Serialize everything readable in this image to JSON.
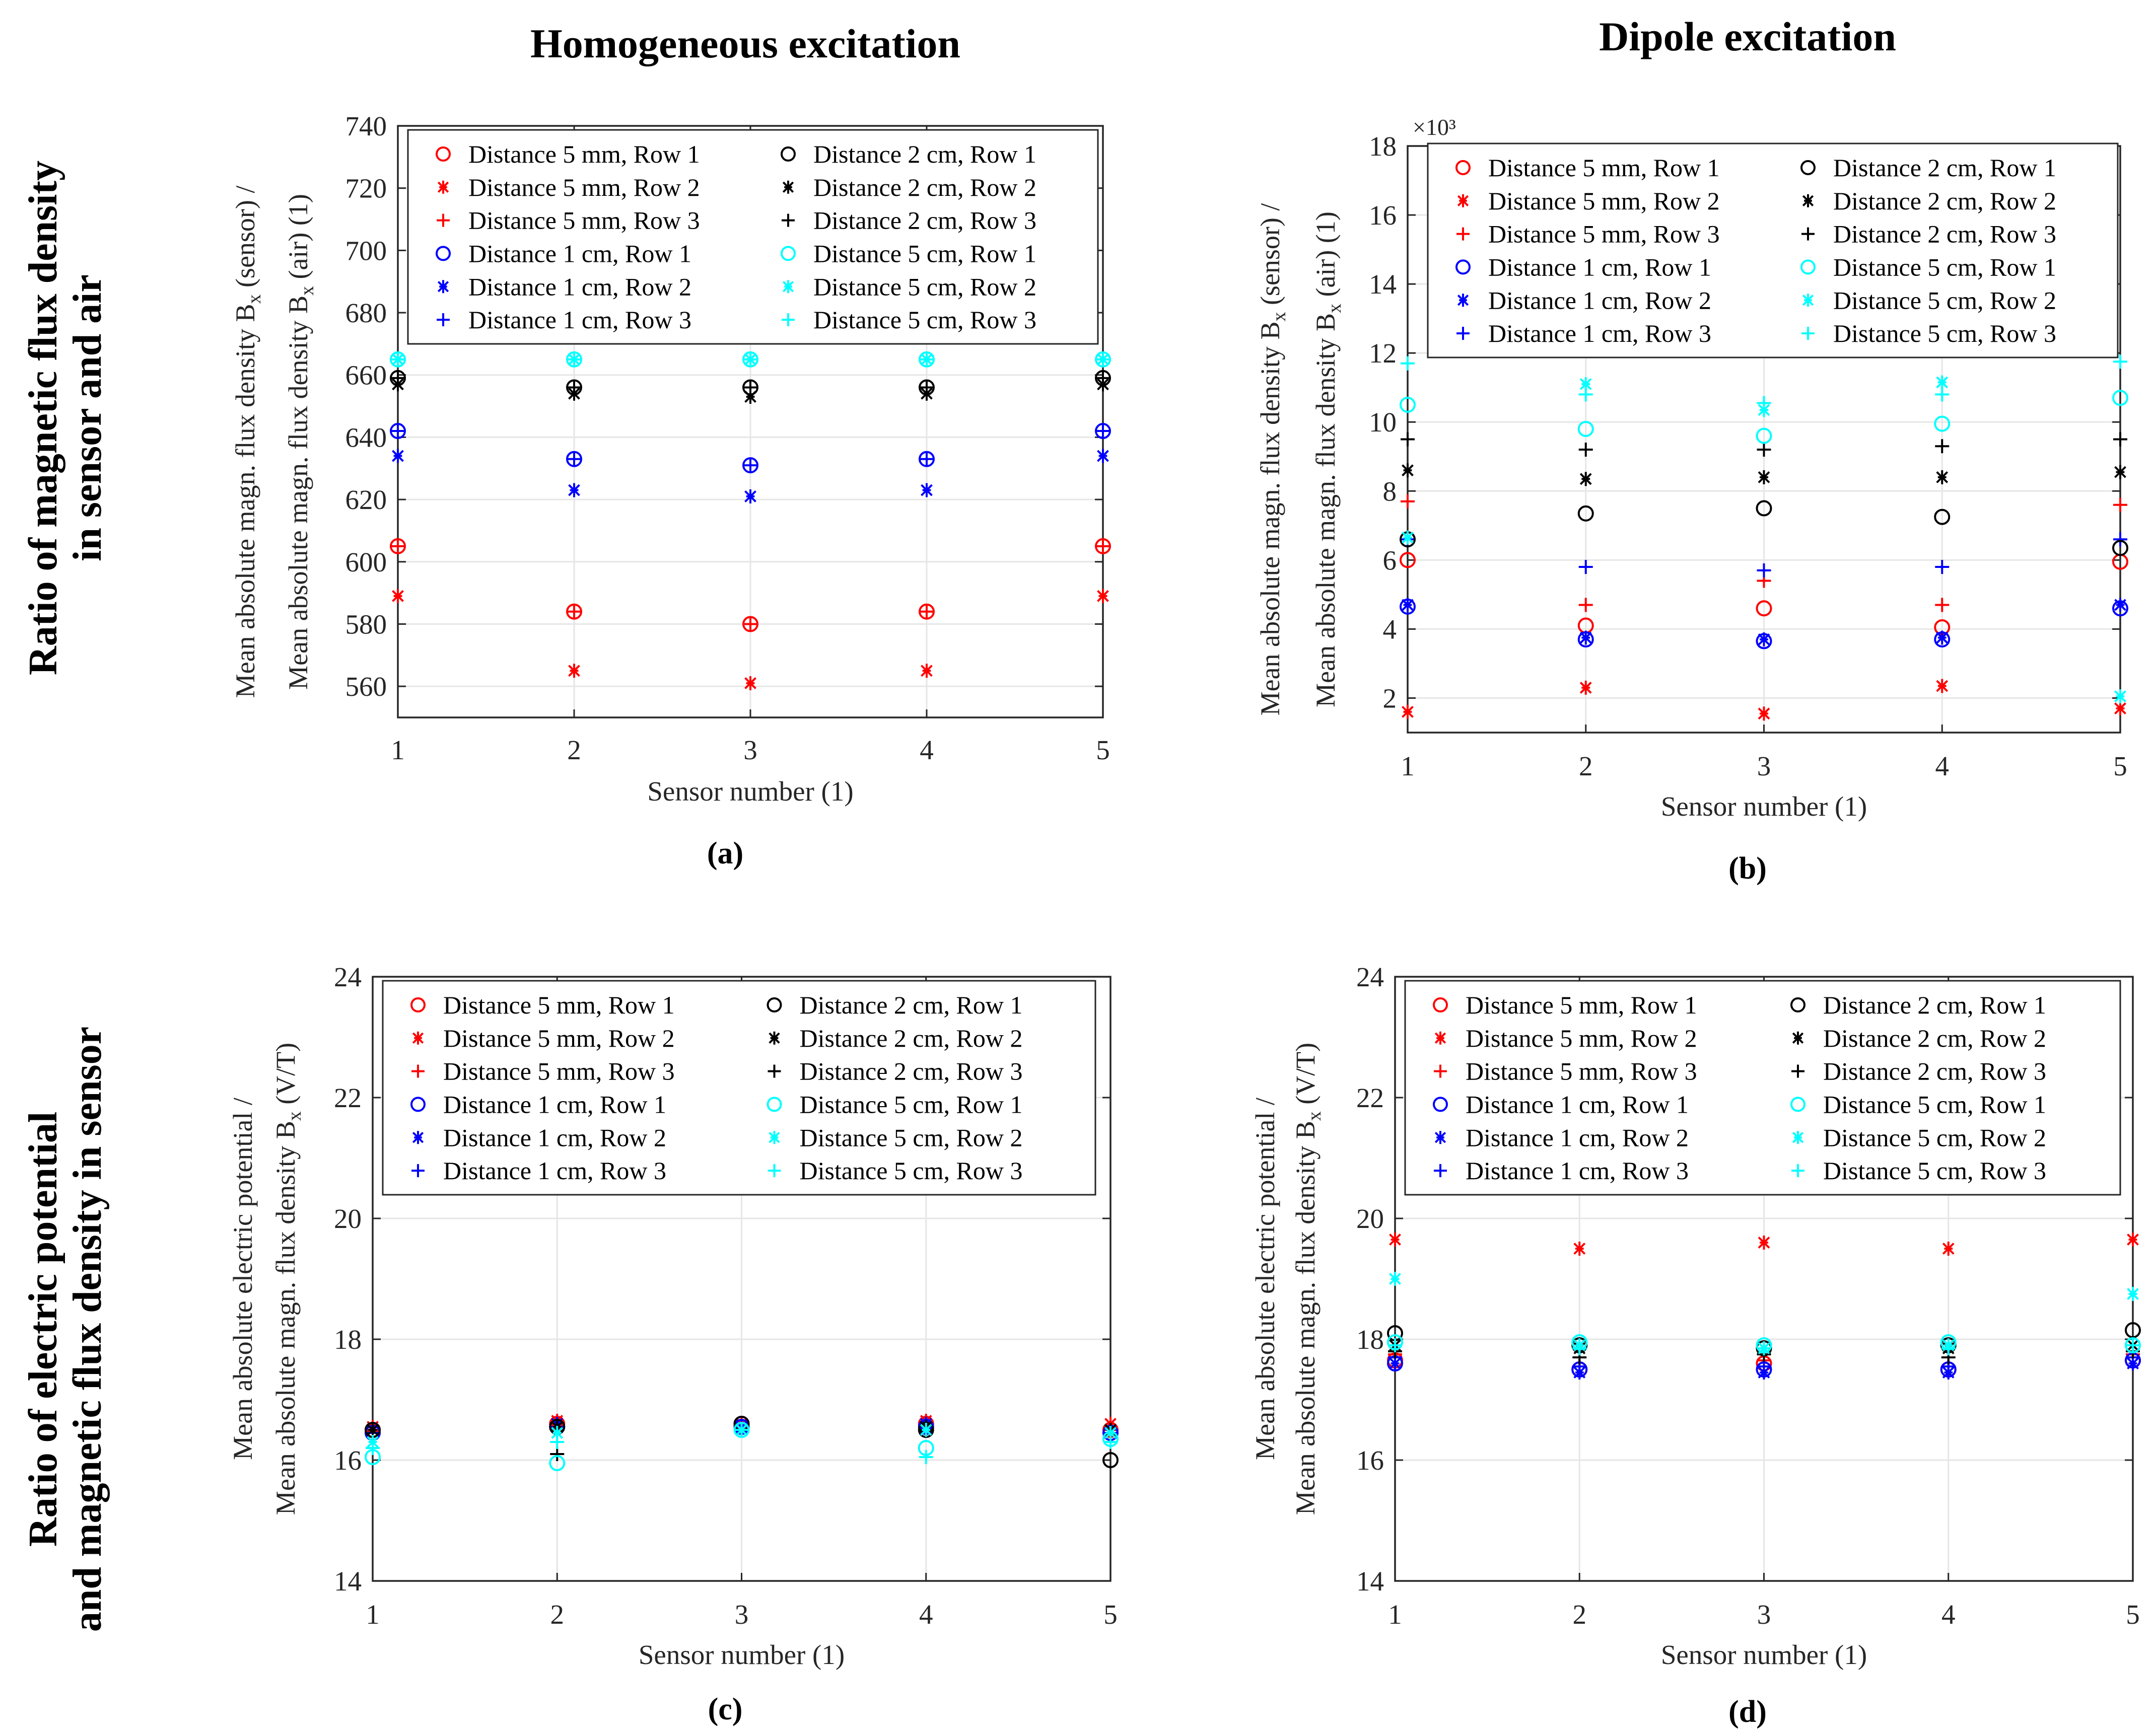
{
  "figure": {
    "column_titles": [
      "Homogeneous excitation",
      "Dipole excitation"
    ],
    "row_titles": [
      [
        "Ratio of magnetic flux density",
        "in sensor and air"
      ],
      [
        "Ratio of electric potential",
        "and magnetic flux density in sensor"
      ]
    ]
  },
  "colors": {
    "red": "#ff0000",
    "black": "#000000",
    "blue": "#0000ff",
    "cyan": "#00ffff",
    "grid": "#e6e6e6",
    "axis": "#262626"
  },
  "series_styles": [
    {
      "name": "Distance 5 mm, Row 1",
      "color": "red",
      "marker": "circle"
    },
    {
      "name": "Distance 5 mm, Row 2",
      "color": "red",
      "marker": "asterisk"
    },
    {
      "name": "Distance 5 mm, Row 3",
      "color": "red",
      "marker": "plus"
    },
    {
      "name": "Distance 1 cm, Row 1",
      "color": "blue",
      "marker": "circle"
    },
    {
      "name": "Distance 1 cm, Row 2",
      "color": "blue",
      "marker": "asterisk"
    },
    {
      "name": "Distance 1 cm, Row 3",
      "color": "blue",
      "marker": "plus"
    },
    {
      "name": "Distance 2 cm, Row 1",
      "color": "black",
      "marker": "circle"
    },
    {
      "name": "Distance 2 cm, Row 2",
      "color": "black",
      "marker": "asterisk"
    },
    {
      "name": "Distance 2 cm, Row 3",
      "color": "black",
      "marker": "plus"
    },
    {
      "name": "Distance 5 cm, Row 1",
      "color": "cyan",
      "marker": "circle"
    },
    {
      "name": "Distance 5 cm, Row 2",
      "color": "cyan",
      "marker": "asterisk"
    },
    {
      "name": "Distance 5 cm, Row 3",
      "color": "cyan",
      "marker": "plus"
    }
  ],
  "chart_data": [
    {
      "panel": "(a)",
      "type": "scatter",
      "title": "Homogeneous excitation",
      "xlabel": "Sensor number (1)",
      "ylabel_lines": [
        {
          "text": "Mean absolute magn. flux density B",
          "sub": "x",
          "tail": " (sensor) /"
        },
        {
          "text": "Mean absolute magn. flux density B",
          "sub": "x",
          "tail": " (air) (1)"
        }
      ],
      "x": [
        1,
        2,
        3,
        4,
        5
      ],
      "xlim": [
        1,
        5
      ],
      "ylim": [
        550,
        740
      ],
      "yticks": [
        560,
        580,
        600,
        620,
        640,
        660,
        680,
        700,
        720,
        740
      ],
      "ytick_labels": [
        "560",
        "580",
        "600",
        "620",
        "640",
        "660",
        "680",
        "700",
        "720",
        "740"
      ],
      "exponent_label": "",
      "grid": true,
      "legend_location": "top",
      "series": [
        {
          "name": "Distance 5 mm, Row 1",
          "values": [
            605,
            584,
            580,
            584,
            605
          ]
        },
        {
          "name": "Distance 5 mm, Row 2",
          "values": [
            589,
            565,
            561,
            565,
            589
          ]
        },
        {
          "name": "Distance 5 mm, Row 3",
          "values": [
            605,
            584,
            580,
            584,
            605
          ]
        },
        {
          "name": "Distance 1 cm, Row 1",
          "values": [
            642,
            633,
            631,
            633,
            642
          ]
        },
        {
          "name": "Distance 1 cm, Row 2",
          "values": [
            634,
            623,
            621,
            623,
            634
          ]
        },
        {
          "name": "Distance 1 cm, Row 3",
          "values": [
            642,
            633,
            631,
            633,
            642
          ]
        },
        {
          "name": "Distance 2 cm, Row 1",
          "values": [
            659,
            656,
            656,
            656,
            659
          ]
        },
        {
          "name": "Distance 2 cm, Row 2",
          "values": [
            657,
            654,
            653,
            654,
            657
          ]
        },
        {
          "name": "Distance 2 cm, Row 3",
          "values": [
            659,
            656,
            656,
            656,
            659
          ]
        },
        {
          "name": "Distance 5 cm, Row 1",
          "values": [
            665,
            665,
            665,
            665,
            665
          ]
        },
        {
          "name": "Distance 5 cm, Row 2",
          "values": [
            665,
            665,
            665,
            665,
            665
          ]
        },
        {
          "name": "Distance 5 cm, Row 3",
          "values": [
            665,
            665,
            665,
            665,
            665
          ]
        }
      ]
    },
    {
      "panel": "(b)",
      "type": "scatter",
      "title": "Dipole excitation",
      "xlabel": "Sensor number (1)",
      "ylabel_lines": [
        {
          "text": "Mean absolute magn. flux density B",
          "sub": "x",
          "tail": " (sensor) /"
        },
        {
          "text": "Mean absolute magn. flux density B",
          "sub": "x",
          "tail": " (air) (1)"
        }
      ],
      "x": [
        1,
        2,
        3,
        4,
        5
      ],
      "xlim": [
        1,
        5
      ],
      "ylim": [
        1000,
        18000
      ],
      "yticks": [
        2000,
        4000,
        6000,
        8000,
        10000,
        12000,
        14000,
        16000,
        18000
      ],
      "ytick_labels": [
        "2",
        "4",
        "6",
        "8",
        "10",
        "12",
        "14",
        "16",
        "18"
      ],
      "exponent_label": "×10³",
      "grid": true,
      "legend_location": "top",
      "series": [
        {
          "name": "Distance 5 mm, Row 1",
          "values": [
            6000,
            4100,
            4600,
            4050,
            5950
          ]
        },
        {
          "name": "Distance 5 mm, Row 2",
          "values": [
            1600,
            2300,
            1550,
            2350,
            1700
          ]
        },
        {
          "name": "Distance 5 mm, Row 3",
          "values": [
            7700,
            4700,
            5400,
            4700,
            7600
          ]
        },
        {
          "name": "Distance 1 cm, Row 1",
          "values": [
            4650,
            3700,
            3650,
            3700,
            4600
          ]
        },
        {
          "name": "Distance 1 cm, Row 2",
          "values": [
            4700,
            3750,
            3700,
            3750,
            4700
          ]
        },
        {
          "name": "Distance 1 cm, Row 3",
          "values": [
            6600,
            5800,
            5700,
            5800,
            6600
          ]
        },
        {
          "name": "Distance 2 cm, Row 1",
          "values": [
            6600,
            7350,
            7500,
            7250,
            6350
          ]
        },
        {
          "name": "Distance 2 cm, Row 2",
          "values": [
            8600,
            8350,
            8400,
            8400,
            8550
          ]
        },
        {
          "name": "Distance 2 cm, Row 3",
          "values": [
            9500,
            9200,
            9200,
            9300,
            9500
          ]
        },
        {
          "name": "Distance 5 cm, Row 1",
          "values": [
            10500,
            9800,
            9600,
            9950,
            10700
          ]
        },
        {
          "name": "Distance 5 cm, Row 2",
          "values": [
            6650,
            11100,
            10350,
            11150,
            2050
          ]
        },
        {
          "name": "Distance 5 cm, Row 3",
          "values": [
            11700,
            10800,
            10550,
            10800,
            11750
          ]
        }
      ]
    },
    {
      "panel": "(c)",
      "type": "scatter",
      "title": "",
      "xlabel": "Sensor number (1)",
      "ylabel_lines": [
        {
          "text": "Mean absolute electric potential /",
          "sub": "",
          "tail": ""
        },
        {
          "text": "Mean absolute magn. flux density B",
          "sub": "x",
          "tail": " (V/T)"
        }
      ],
      "x": [
        1,
        2,
        3,
        4,
        5
      ],
      "xlim": [
        1,
        5
      ],
      "ylim": [
        14,
        24
      ],
      "yticks": [
        14,
        16,
        18,
        20,
        22,
        24
      ],
      "ytick_labels": [
        "14",
        "16",
        "18",
        "20",
        "22",
        "24"
      ],
      "exponent_label": "",
      "grid": true,
      "legend_location": "top",
      "series": [
        {
          "name": "Distance 5 mm, Row 1",
          "values": [
            16.5,
            16.6,
            16.6,
            16.6,
            16.5
          ]
        },
        {
          "name": "Distance 5 mm, Row 2",
          "values": [
            16.55,
            16.65,
            16.6,
            16.65,
            16.6
          ]
        },
        {
          "name": "Distance 5 mm, Row 3",
          "values": [
            16.5,
            16.6,
            16.6,
            16.6,
            16.5
          ]
        },
        {
          "name": "Distance 1 cm, Row 1",
          "values": [
            16.45,
            16.55,
            16.55,
            16.55,
            16.45
          ]
        },
        {
          "name": "Distance 1 cm, Row 2",
          "values": [
            16.5,
            16.6,
            16.55,
            16.6,
            16.5
          ]
        },
        {
          "name": "Distance 1 cm, Row 3",
          "values": [
            16.45,
            16.55,
            16.55,
            16.55,
            16.45
          ]
        },
        {
          "name": "Distance 2 cm, Row 1",
          "values": [
            16.5,
            16.55,
            16.6,
            16.5,
            16.0
          ]
        },
        {
          "name": "Distance 2 cm, Row 2",
          "values": [
            16.5,
            16.55,
            16.5,
            16.55,
            16.5
          ]
        },
        {
          "name": "Distance 2 cm, Row 3",
          "values": [
            16.2,
            16.1,
            16.5,
            16.5,
            16.3
          ]
        },
        {
          "name": "Distance 5 cm, Row 1",
          "values": [
            16.05,
            15.95,
            16.5,
            16.2,
            16.35
          ]
        },
        {
          "name": "Distance 5 cm, Row 2",
          "values": [
            16.3,
            16.45,
            16.5,
            16.5,
            16.45
          ]
        },
        {
          "name": "Distance 5 cm, Row 3",
          "values": [
            16.2,
            16.3,
            16.5,
            16.05,
            16.3
          ]
        }
      ]
    },
    {
      "panel": "(d)",
      "type": "scatter",
      "title": "",
      "xlabel": "Sensor number (1)",
      "ylabel_lines": [
        {
          "text": "Mean absolute electric potential /",
          "sub": "",
          "tail": ""
        },
        {
          "text": "Mean absolute magn. flux density B",
          "sub": "x",
          "tail": " (V/T)"
        }
      ],
      "x": [
        1,
        2,
        3,
        4,
        5
      ],
      "xlim": [
        1,
        5
      ],
      "ylim": [
        14,
        24
      ],
      "yticks": [
        14,
        16,
        18,
        20,
        22,
        24
      ],
      "ytick_labels": [
        "14",
        "16",
        "18",
        "20",
        "22",
        "24"
      ],
      "exponent_label": "",
      "grid": true,
      "legend_location": "top",
      "series": [
        {
          "name": "Distance 5 mm, Row 1",
          "values": [
            17.65,
            17.5,
            17.6,
            17.5,
            17.65
          ]
        },
        {
          "name": "Distance 5 mm, Row 2",
          "values": [
            19.65,
            19.5,
            19.6,
            19.5,
            19.65
          ]
        },
        {
          "name": "Distance 5 mm, Row 3",
          "values": [
            17.75,
            17.55,
            17.65,
            17.55,
            17.75
          ]
        },
        {
          "name": "Distance 1 cm, Row 1",
          "values": [
            17.6,
            17.5,
            17.5,
            17.5,
            17.65
          ]
        },
        {
          "name": "Distance 1 cm, Row 2",
          "values": [
            17.6,
            17.45,
            17.45,
            17.45,
            17.6
          ]
        },
        {
          "name": "Distance 1 cm, Row 3",
          "values": [
            17.7,
            17.55,
            17.55,
            17.55,
            17.7
          ]
        },
        {
          "name": "Distance 2 cm, Row 1",
          "values": [
            18.1,
            17.9,
            17.85,
            17.9,
            18.15
          ]
        },
        {
          "name": "Distance 2 cm, Row 2",
          "values": [
            17.9,
            17.85,
            17.85,
            17.85,
            17.9
          ]
        },
        {
          "name": "Distance 2 cm, Row 3",
          "values": [
            17.8,
            17.7,
            17.75,
            17.7,
            17.8
          ]
        },
        {
          "name": "Distance 5 cm, Row 1",
          "values": [
            17.95,
            17.95,
            17.9,
            17.95,
            17.9
          ]
        },
        {
          "name": "Distance 5 cm, Row 2",
          "values": [
            19.0,
            17.9,
            17.85,
            17.9,
            18.75
          ]
        },
        {
          "name": "Distance 5 cm, Row 3",
          "values": [
            17.9,
            17.85,
            17.85,
            17.85,
            17.9
          ]
        }
      ]
    }
  ]
}
